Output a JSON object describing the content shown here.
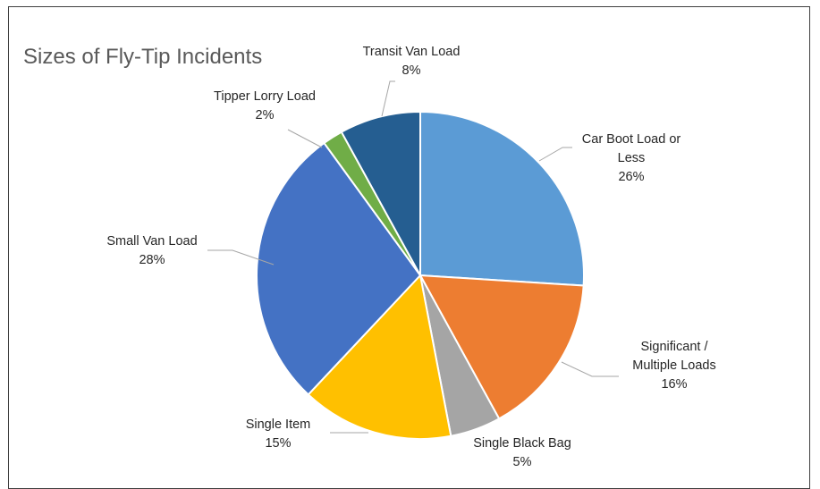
{
  "chart_data": {
    "type": "pie",
    "title": "Sizes of Fly-Tip Incidents",
    "slices": [
      {
        "label": "Car Boot Load or Less",
        "label_lines": [
          "Car Boot Load or",
          "Less"
        ],
        "percent_text": "26%",
        "value": 26,
        "color": "#5B9BD5"
      },
      {
        "label": "Significant / Multiple Loads",
        "label_lines": [
          "Significant /",
          "Multiple Loads"
        ],
        "percent_text": "16%",
        "value": 16,
        "color": "#ED7D31"
      },
      {
        "label": "Single Black Bag",
        "label_lines": [
          "Single Black Bag"
        ],
        "percent_text": "5%",
        "value": 5,
        "color": "#A5A5A5"
      },
      {
        "label": "Single Item",
        "label_lines": [
          "Single Item"
        ],
        "percent_text": "15%",
        "value": 15,
        "color": "#FFC000"
      },
      {
        "label": "Small Van Load",
        "label_lines": [
          "Small Van Load"
        ],
        "percent_text": "28%",
        "value": 28,
        "color": "#4472C4"
      },
      {
        "label": "Tipper Lorry Load",
        "label_lines": [
          "Tipper Lorry Load"
        ],
        "percent_text": "2%",
        "value": 2,
        "color": "#70AD47"
      },
      {
        "label": "Transit Van Load",
        "label_lines": [
          "Transit Van Load"
        ],
        "percent_text": "8%",
        "value": 8,
        "color": "#255E91"
      }
    ],
    "start_angle_deg": 0,
    "direction": "clockwise",
    "legend": "none",
    "data_labels": "outside-with-leader-lines"
  }
}
